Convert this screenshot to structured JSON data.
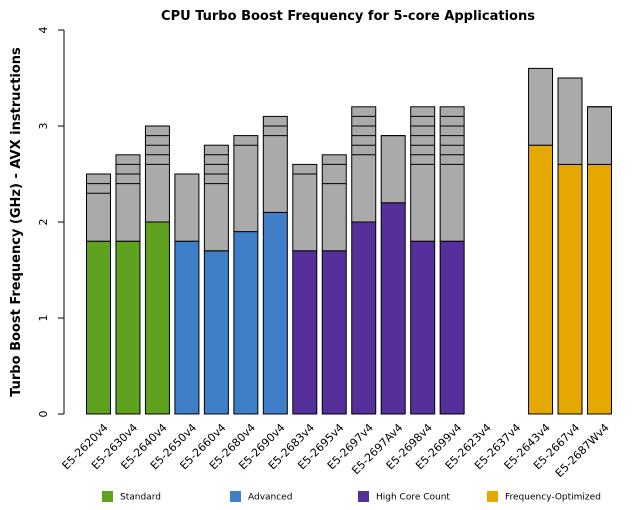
{
  "chart_data": {
    "type": "stacked-bar",
    "title": "CPU Turbo Boost Frequency for 5-core Applications",
    "y_label": "Turbo Boost Frequency (GHz) - AVX instructions",
    "categories": [
      "E5-2620v4",
      "E5-2630v4",
      "E5-2640v4",
      "E5-2650v4",
      "E5-2660v4",
      "E5-2680v4",
      "E5-2690v4",
      "E5-2683v4",
      "E5-2695v4",
      "E5-2697v4",
      "E5-2697Av4",
      "E5-2698v4",
      "E5-2699v4",
      "E5-2623v4",
      "E5-2637v4",
      "E5-2643v4",
      "E5-2667v4",
      "E5-2687Wv4"
    ],
    "series": [
      {
        "values": [
          1.8,
          1.8,
          2.0,
          1.8,
          1.7,
          1.9,
          2.1,
          1.7,
          1.7,
          2.0,
          2.2,
          1.8,
          1.8,
          null,
          null,
          2.8,
          2.6,
          2.6
        ],
        "colors": [
          "#5fa21f",
          "#5fa21f",
          "#5fa21f",
          "#3f7fc8",
          "#3f7fc8",
          "#3f7fc8",
          "#3f7fc8",
          "#56309a",
          "#56309a",
          "#56309a",
          "#56309a",
          "#56309a",
          "#56309a",
          "#e5a800",
          "#e5a800",
          "#e5a800",
          "#e5a800",
          "#e5a800"
        ]
      },
      {
        "values": [
          0.7,
          0.9,
          1.0,
          0.7,
          1.1,
          1.0,
          1.0,
          0.9,
          1.0,
          1.2,
          0.7,
          1.4,
          1.4,
          null,
          null,
          0.8,
          0.9,
          0.6
        ],
        "color": "#aaaaaa"
      }
    ],
    "bin_lines": [
      [
        2.3,
        2.4
      ],
      [
        2.4,
        2.5,
        2.6
      ],
      [
        2.6,
        2.7,
        2.8,
        2.9
      ],
      [],
      [
        2.4,
        2.5,
        2.6,
        2.7
      ],
      [
        2.8
      ],
      [
        2.9,
        3.0
      ],
      [
        2.5
      ],
      [
        2.4,
        2.6
      ],
      [
        2.7,
        2.8,
        2.9,
        3.0,
        3.1
      ],
      [
        2.9
      ],
      [
        2.6,
        2.7,
        2.8,
        2.9,
        3.0,
        3.1
      ],
      [
        2.6,
        2.7,
        2.8,
        2.9,
        3.0,
        3.1
      ],
      [],
      [],
      [],
      [],
      [
        3.2
      ]
    ],
    "legend": [
      {
        "name": "Standard",
        "color": "#5fa21f"
      },
      {
        "name": "Advanced",
        "color": "#3f7fc8"
      },
      {
        "name": "High Core Count",
        "color": "#56309a"
      },
      {
        "name": "Frequency-Optimized",
        "color": "#e5a800"
      }
    ],
    "ylim": [
      0,
      4
    ],
    "yticks": [
      0,
      1,
      2,
      3,
      4
    ]
  }
}
